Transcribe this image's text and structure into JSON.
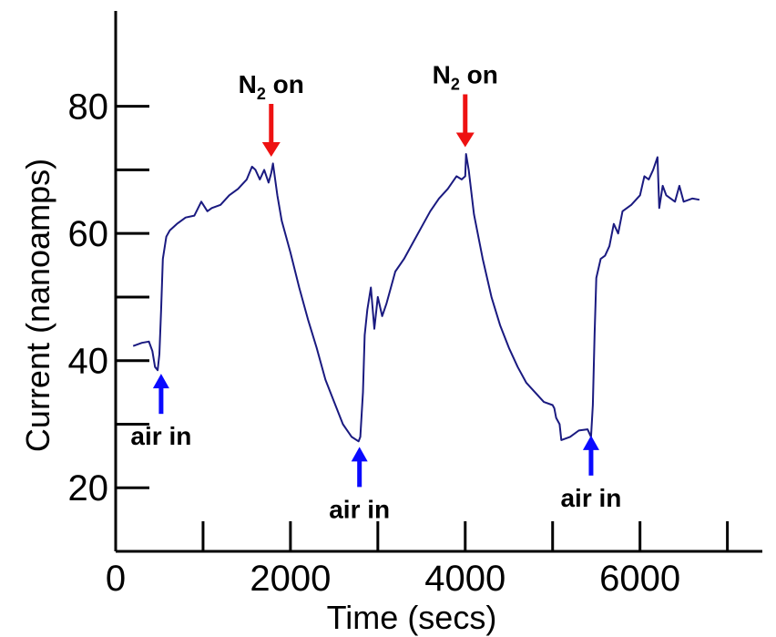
{
  "chart_data": {
    "type": "line",
    "title": "",
    "xlabel": "Time (secs)",
    "ylabel": "Current (nanoamps)",
    "xlim": [
      0,
      7400
    ],
    "ylim": [
      10,
      95
    ],
    "x_ticks": [
      0,
      2000,
      4000,
      6000
    ],
    "x_minor_ticks": [
      1000,
      3000,
      5000,
      7000
    ],
    "y_ticks": [
      20,
      40,
      60,
      80
    ],
    "y_minor_ticks": [
      30,
      50,
      70
    ],
    "grid": false,
    "line_color": "#1a1a80",
    "series": [
      {
        "name": "",
        "points": [
          [
            200,
            42.3
          ],
          [
            300,
            42.8
          ],
          [
            380,
            43.0
          ],
          [
            420,
            41.5
          ],
          [
            450,
            39.0
          ],
          [
            480,
            38.5
          ],
          [
            500,
            41.0
          ],
          [
            520,
            48.0
          ],
          [
            540,
            56.0
          ],
          [
            580,
            59.5
          ],
          [
            620,
            60.5
          ],
          [
            700,
            61.5
          ],
          [
            800,
            62.5
          ],
          [
            900,
            62.8
          ],
          [
            980,
            65.0
          ],
          [
            1050,
            63.5
          ],
          [
            1100,
            64.0
          ],
          [
            1200,
            64.5
          ],
          [
            1300,
            66.0
          ],
          [
            1400,
            67.0
          ],
          [
            1500,
            68.5
          ],
          [
            1560,
            70.5
          ],
          [
            1600,
            70.0
          ],
          [
            1650,
            68.5
          ],
          [
            1700,
            70.0
          ],
          [
            1750,
            68.0
          ],
          [
            1780,
            69.5
          ],
          [
            1800,
            71.0
          ],
          [
            1850,
            66.0
          ],
          [
            1900,
            62.0
          ],
          [
            2000,
            57.0
          ],
          [
            2100,
            51.5
          ],
          [
            2200,
            46.5
          ],
          [
            2300,
            42.0
          ],
          [
            2400,
            37.0
          ],
          [
            2500,
            33.5
          ],
          [
            2600,
            30.0
          ],
          [
            2700,
            28.0
          ],
          [
            2780,
            27.3
          ],
          [
            2800,
            28.0
          ],
          [
            2830,
            35.0
          ],
          [
            2850,
            44.0
          ],
          [
            2880,
            48.0
          ],
          [
            2920,
            51.5
          ],
          [
            2960,
            45.0
          ],
          [
            3000,
            50.0
          ],
          [
            3050,
            47.0
          ],
          [
            3100,
            49.0
          ],
          [
            3200,
            54.0
          ],
          [
            3300,
            56.0
          ],
          [
            3400,
            58.5
          ],
          [
            3500,
            61.0
          ],
          [
            3600,
            63.5
          ],
          [
            3700,
            65.5
          ],
          [
            3800,
            67.0
          ],
          [
            3900,
            69.0
          ],
          [
            3960,
            68.5
          ],
          [
            4000,
            69.0
          ],
          [
            4010,
            72.5
          ],
          [
            4040,
            70.0
          ],
          [
            4100,
            63.0
          ],
          [
            4200,
            56.0
          ],
          [
            4300,
            50.0
          ],
          [
            4400,
            45.5
          ],
          [
            4500,
            42.0
          ],
          [
            4600,
            39.0
          ],
          [
            4700,
            36.5
          ],
          [
            4800,
            35.0
          ],
          [
            4900,
            33.5
          ],
          [
            5000,
            33.0
          ],
          [
            5020,
            32.5
          ],
          [
            5040,
            31.0
          ],
          [
            5080,
            30.0
          ],
          [
            5100,
            27.5
          ],
          [
            5200,
            28.0
          ],
          [
            5300,
            29.0
          ],
          [
            5400,
            29.2
          ],
          [
            5440,
            28.0
          ],
          [
            5460,
            33.0
          ],
          [
            5480,
            44.0
          ],
          [
            5500,
            53.0
          ],
          [
            5550,
            56.0
          ],
          [
            5600,
            56.5
          ],
          [
            5650,
            58.0
          ],
          [
            5700,
            61.5
          ],
          [
            5750,
            60.0
          ],
          [
            5800,
            63.5
          ],
          [
            5900,
            64.5
          ],
          [
            6000,
            66.0
          ],
          [
            6050,
            69.0
          ],
          [
            6100,
            68.5
          ],
          [
            6150,
            70.0
          ],
          [
            6200,
            72.0
          ],
          [
            6220,
            64.0
          ],
          [
            6260,
            67.5
          ],
          [
            6300,
            66.0
          ],
          [
            6400,
            65.0
          ],
          [
            6450,
            67.5
          ],
          [
            6500,
            65.0
          ],
          [
            6600,
            65.5
          ],
          [
            6680,
            65.3
          ]
        ]
      }
    ],
    "annotations": [
      {
        "text": "air in",
        "x": 520,
        "y": 38.5,
        "arrow": "up",
        "color": "#0a0aff"
      },
      {
        "text": "N",
        "sub": "2",
        "suffix": " on",
        "x": 1780,
        "y": 71.5,
        "arrow": "down",
        "color": "#ee1111"
      },
      {
        "text": "air in",
        "x": 2790,
        "y": 27.0,
        "arrow": "up",
        "color": "#0a0aff"
      },
      {
        "text": "N",
        "sub": "2",
        "suffix": " on",
        "x": 4000,
        "y": 73.0,
        "arrow": "down",
        "color": "#ee1111"
      },
      {
        "text": "air in",
        "x": 5440,
        "y": 28.8,
        "arrow": "up",
        "color": "#0a0aff"
      }
    ]
  }
}
